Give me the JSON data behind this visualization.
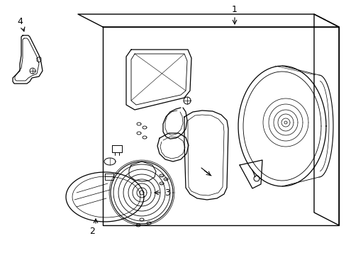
{
  "bg_color": "#ffffff",
  "line_color": "#000000",
  "label_1": "1",
  "label_2": "2",
  "label_3": "3",
  "label_4": "4"
}
